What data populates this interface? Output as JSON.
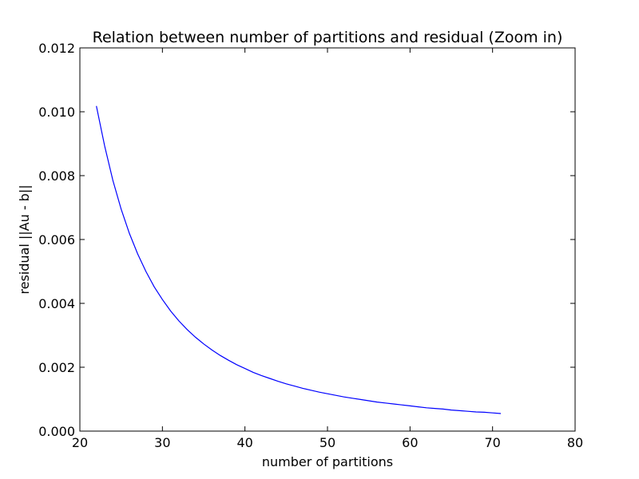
{
  "chart_data": {
    "type": "line",
    "title": "Relation between number of partitions and residual (Zoom in)",
    "xlabel": "number of partitions",
    "ylabel": "residual ||Au - b||",
    "xlim": [
      20,
      80
    ],
    "ylim": [
      0,
      0.012
    ],
    "xticks": [
      "20",
      "30",
      "40",
      "50",
      "60",
      "70",
      "80"
    ],
    "yticks": [
      "0.000",
      "0.002",
      "0.004",
      "0.006",
      "0.008",
      "0.010",
      "0.012"
    ],
    "grid": false,
    "legend": "none",
    "series": [
      {
        "color": "#0000ff",
        "x": [
          22,
          23,
          24,
          25,
          26,
          27,
          28,
          29,
          30,
          31,
          32,
          33,
          34,
          35,
          36,
          37,
          38,
          39,
          40,
          41,
          42,
          43,
          44,
          45,
          46,
          47,
          48,
          49,
          50,
          51,
          52,
          53,
          54,
          55,
          56,
          57,
          58,
          59,
          60,
          61,
          62,
          63,
          64,
          65,
          66,
          67,
          68,
          69,
          70,
          71
        ],
        "y": [
          0.01018,
          0.00893,
          0.00785,
          0.00695,
          0.00619,
          0.00555,
          0.005,
          0.00452,
          0.00412,
          0.00376,
          0.00345,
          0.00318,
          0.00294,
          0.00273,
          0.00254,
          0.00237,
          0.00222,
          0.00208,
          0.00196,
          0.00184,
          0.00174,
          0.00165,
          0.00156,
          0.00148,
          0.00141,
          0.00134,
          0.00128,
          0.00122,
          0.00117,
          0.00112,
          0.00107,
          0.00103,
          0.00099,
          0.00095,
          0.00091,
          0.00088,
          0.00085,
          0.00082,
          0.00079,
          0.00076,
          0.00073,
          0.00071,
          0.00069,
          0.00066,
          0.00064,
          0.00062,
          0.0006,
          0.00059,
          0.00057,
          0.00055
        ]
      }
    ]
  }
}
